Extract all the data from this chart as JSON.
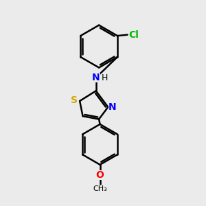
{
  "bg_color": "#ebebeb",
  "bond_color": "#000000",
  "line_width": 1.8,
  "atom_colors": {
    "N": "#0000ff",
    "S": "#ccaa00",
    "O": "#ff0000",
    "Cl": "#00bb00",
    "C": "#000000",
    "H": "#000000"
  },
  "font_size": 8.5,
  "fig_size": [
    3.0,
    3.0
  ],
  "dpi": 100,
  "xlim": [
    0,
    10
  ],
  "ylim": [
    0,
    10
  ]
}
